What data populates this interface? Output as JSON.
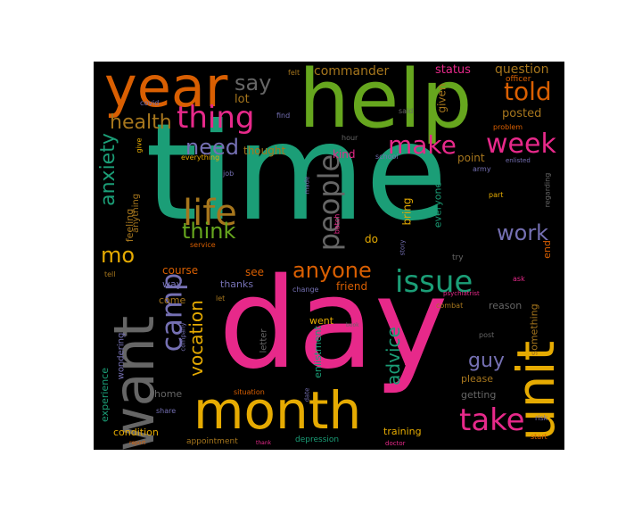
{
  "figure": {
    "type": "word cloud",
    "colors": {
      "background": "#000000",
      "page": "#ffffff",
      "green": "#1b9e77",
      "pink": "#e7298a",
      "orange": "#d95f02",
      "lime": "#66a61e",
      "gold": "#e6ab02",
      "lavender": "#7570b3",
      "brown": "#a6761d",
      "gray": "#666666"
    }
  },
  "words": {
    "time": "time",
    "day": "day",
    "help": "help",
    "year": "year",
    "want": "want",
    "month": "month",
    "unit": "unit",
    "take": "take",
    "week": "week",
    "thing": "thing",
    "life": "life",
    "make": "make",
    "people": "people",
    "camp": "camp",
    "issue": "issue",
    "anyone": "anyone",
    "told": "told",
    "need": "need",
    "think": "think",
    "health": "health",
    "say": "say",
    "work": "work",
    "mo": "mo",
    "anxiety": "anxiety",
    "vocation": "vocation",
    "advice": "advice",
    "guy": "guy",
    "commander": "commander",
    "question": "question",
    "status": "status",
    "posted": "posted",
    "given": "given",
    "lot": "lot",
    "felt": "felt",
    "officer": "officer",
    "problem": "problem",
    "covid": "covid",
    "find": "find",
    "said": "said",
    "thought": "thought",
    "kind": "kind",
    "hour": "hour",
    "school": "school",
    "point": "point",
    "army": "army",
    "enlisted": "enlisted",
    "everything": "everything",
    "give": "give",
    "job": "job",
    "made": "made",
    "part": "part",
    "regarding": "regarding",
    "feeling": "feeling",
    "anything": "anything",
    "bring": "bring",
    "everyone": "everyone",
    "batch": "batch",
    "do": "do",
    "end": "end",
    "service": "service",
    "story": "story",
    "try": "try",
    "course": "course",
    "see": "see",
    "friend": "friend",
    "tell": "tell",
    "way": "way",
    "thanks": "thanks",
    "change": "change",
    "psychiatrist": "psychiatrist",
    "ask": "ask",
    "come": "come",
    "let": "let",
    "combat": "combat",
    "reason": "reason",
    "something": "something",
    "went": "went",
    "book": "book",
    "experience": "experience",
    "wondering": "wondering",
    "company": "company",
    "letter": "letter",
    "enlistment": "enlistment",
    "post": "post",
    "stay": "stay",
    "please": "please",
    "home": "home",
    "situation": "situation",
    "date": "date",
    "getting": "getting",
    "share": "share",
    "risk": "risk",
    "condition": "condition",
    "training": "training",
    "report": "report",
    "appointment": "appointment",
    "thank": "thank",
    "depression": "depression",
    "doctor": "doctor",
    "start": "start"
  }
}
